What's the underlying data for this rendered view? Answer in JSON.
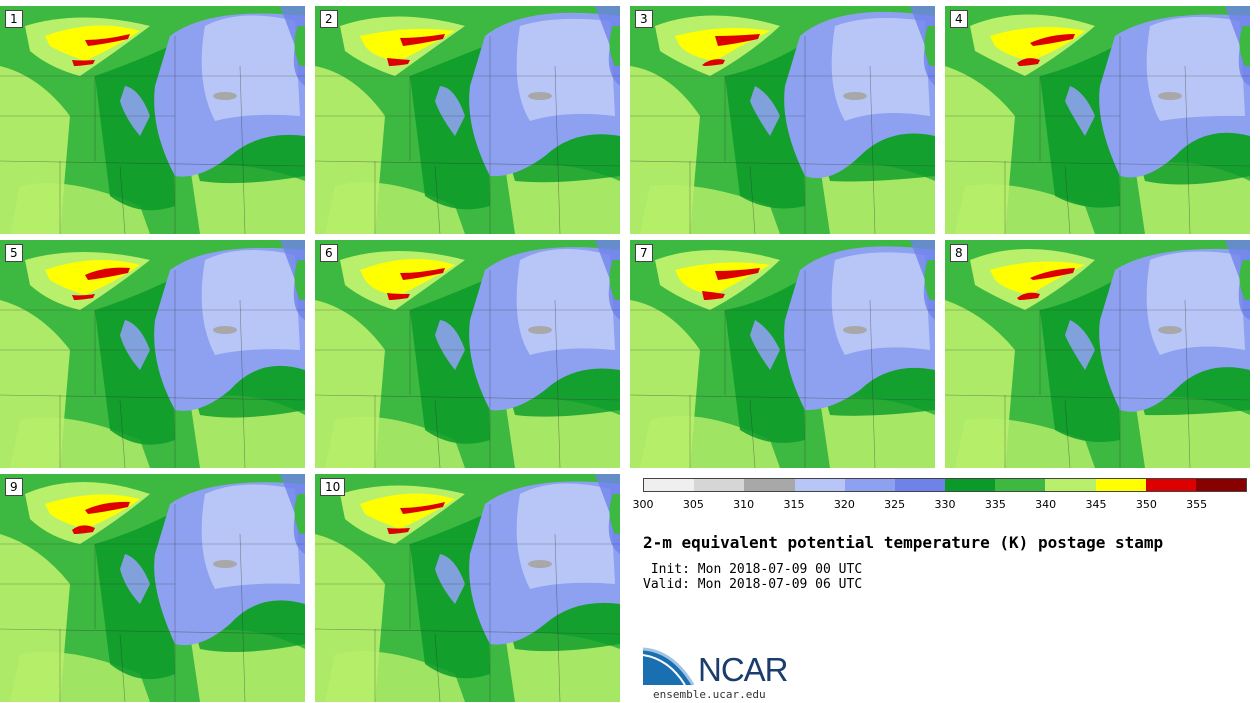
{
  "panels": [
    {
      "label": "1"
    },
    {
      "label": "2"
    },
    {
      "label": "3"
    },
    {
      "label": "4"
    },
    {
      "label": "5"
    },
    {
      "label": "6"
    },
    {
      "label": "7"
    },
    {
      "label": "8"
    },
    {
      "label": "9"
    },
    {
      "label": "10"
    }
  ],
  "colorbar": {
    "colors": [
      "#efefef",
      "#d6d6d6",
      "#a8a8a8",
      "#b8c6f7",
      "#8ea1f0",
      "#6f82ea",
      "#0a9a29",
      "#3db840",
      "#b8f06c",
      "#ffff00",
      "#dd0000",
      "#880000"
    ],
    "ticks": [
      "300",
      "305",
      "310",
      "315",
      "320",
      "325",
      "330",
      "335",
      "340",
      "345",
      "350",
      "355"
    ]
  },
  "title": "2-m equivalent potential temperature (K) postage stamp",
  "init": " Init: Mon 2018-07-09 00 UTC",
  "valid": "Valid: Mon 2018-07-09 06 UTC",
  "logo": {
    "text": "NCAR",
    "url": "ensemble.ucar.edu"
  },
  "map_colors": {
    "warm_green": "#3db840",
    "dark_green": "#0a9a29",
    "light_green": "#b8f06c",
    "yellow": "#ffff00",
    "red": "#dd0000",
    "blue": "#8ea1f0",
    "deep_blue": "#6f82ea",
    "light_blue": "#b8c6f7",
    "gray": "#a8a8a8"
  }
}
